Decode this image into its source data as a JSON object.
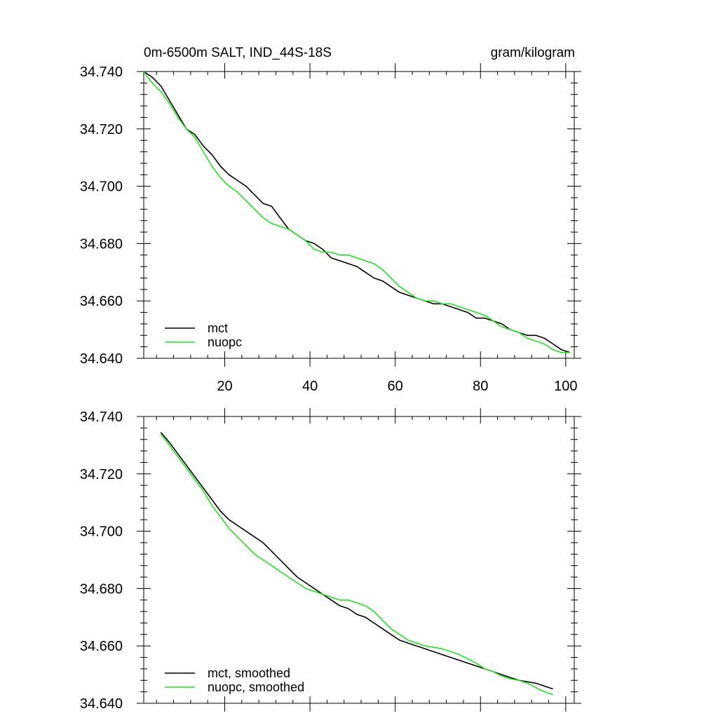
{
  "header": {
    "title": "0m-6500m SALT, IND_44S-18S",
    "units": "gram/kilogram"
  },
  "colors": {
    "mct": "#000000",
    "nuopc": "#22e022",
    "axis": "#000000"
  },
  "chart_data": [
    {
      "type": "line",
      "panel": "top",
      "title": "0m-6500m SALT, IND_44S-18S",
      "units": "gram/kilogram",
      "xlabel": "",
      "ylabel": "",
      "xlim": [
        1,
        102
      ],
      "ylim": [
        34.64,
        34.74
      ],
      "xticks": [
        20,
        40,
        60,
        80,
        100
      ],
      "xtick_labels": [
        "20",
        "40",
        "60",
        "80",
        "100"
      ],
      "yticks": [
        34.64,
        34.66,
        34.68,
        34.7,
        34.72,
        34.74
      ],
      "ytick_labels": [
        "34.640",
        "34.660",
        "34.680",
        "34.700",
        "34.720",
        "34.740"
      ],
      "show_xtick_labels": true,
      "grid": false,
      "legend": "bottom-left",
      "series": [
        {
          "name": "mct",
          "color": "#000000",
          "x": [
            1,
            3,
            5,
            7,
            9,
            11,
            13,
            15,
            17,
            19,
            21,
            23,
            25,
            27,
            29,
            31,
            33,
            35,
            37,
            39,
            41,
            43,
            45,
            47,
            49,
            51,
            53,
            55,
            57,
            59,
            61,
            63,
            65,
            67,
            69,
            71,
            73,
            75,
            77,
            79,
            81,
            83,
            85,
            87,
            89,
            91,
            93,
            95,
            97,
            99,
            101
          ],
          "y": [
            34.74,
            34.738,
            34.735,
            34.73,
            34.725,
            34.72,
            34.718,
            34.714,
            34.711,
            34.707,
            34.704,
            34.702,
            34.7,
            34.697,
            34.694,
            34.693,
            34.689,
            34.685,
            34.683,
            34.681,
            34.68,
            34.678,
            34.675,
            34.674,
            34.673,
            34.672,
            34.67,
            34.668,
            34.667,
            34.665,
            34.663,
            34.662,
            34.661,
            34.66,
            34.659,
            34.659,
            34.658,
            34.657,
            34.656,
            34.654,
            34.654,
            34.653,
            34.652,
            34.65,
            34.649,
            34.648,
            34.648,
            34.647,
            34.645,
            34.643,
            34.642
          ]
        },
        {
          "name": "nuopc",
          "color": "#22e022",
          "x": [
            1,
            3,
            5,
            7,
            9,
            11,
            13,
            15,
            17,
            19,
            21,
            23,
            25,
            27,
            29,
            31,
            33,
            35,
            37,
            39,
            41,
            43,
            45,
            47,
            49,
            51,
            53,
            55,
            57,
            59,
            61,
            63,
            65,
            67,
            69,
            71,
            73,
            75,
            77,
            79,
            81,
            83,
            85,
            87,
            89,
            91,
            93,
            95,
            97,
            99,
            101
          ],
          "y": [
            34.74,
            34.736,
            34.733,
            34.729,
            34.724,
            34.72,
            34.717,
            34.712,
            34.707,
            34.703,
            34.7,
            34.698,
            34.695,
            34.692,
            34.689,
            34.687,
            34.686,
            34.685,
            34.683,
            34.681,
            34.678,
            34.677,
            34.677,
            34.676,
            34.676,
            34.675,
            34.674,
            34.673,
            34.671,
            34.668,
            34.665,
            34.663,
            34.661,
            34.66,
            34.66,
            34.659,
            34.659,
            34.658,
            34.657,
            34.656,
            34.655,
            34.653,
            34.651,
            34.65,
            34.649,
            34.647,
            34.646,
            34.645,
            34.643,
            34.642,
            34.642
          ]
        }
      ]
    },
    {
      "type": "line",
      "panel": "bottom",
      "xlabel": "",
      "ylabel": "",
      "xlim": [
        1,
        102
      ],
      "ylim": [
        34.64,
        34.74
      ],
      "xticks": [
        20,
        40,
        60,
        80,
        100
      ],
      "xtick_labels": [
        "20",
        "40",
        "60",
        "80",
        "100"
      ],
      "yticks": [
        34.64,
        34.66,
        34.68,
        34.7,
        34.72,
        34.74
      ],
      "ytick_labels": [
        "34.640",
        "34.660",
        "34.680",
        "34.700",
        "34.720",
        "34.740"
      ],
      "show_xtick_labels": false,
      "grid": false,
      "legend": "bottom-left",
      "series": [
        {
          "name": "mct, smoothed",
          "color": "#000000",
          "x": [
            5,
            7,
            9,
            11,
            13,
            15,
            17,
            19,
            21,
            23,
            25,
            27,
            29,
            31,
            33,
            35,
            37,
            39,
            41,
            43,
            45,
            47,
            49,
            51,
            53,
            55,
            57,
            59,
            61,
            63,
            65,
            67,
            69,
            71,
            73,
            75,
            77,
            79,
            81,
            83,
            85,
            87,
            89,
            91,
            93,
            95,
            97
          ],
          "y": [
            34.7345,
            34.731,
            34.727,
            34.723,
            34.719,
            34.715,
            34.711,
            34.707,
            34.704,
            34.702,
            34.7,
            34.698,
            34.696,
            34.693,
            34.69,
            34.687,
            34.684,
            34.682,
            34.68,
            34.678,
            34.676,
            34.674,
            34.673,
            34.671,
            34.67,
            34.668,
            34.666,
            34.664,
            34.662,
            34.661,
            34.66,
            34.659,
            34.658,
            34.657,
            34.656,
            34.655,
            34.654,
            34.653,
            34.652,
            34.651,
            34.65,
            34.649,
            34.648,
            34.6475,
            34.647,
            34.646,
            34.645
          ]
        },
        {
          "name": "nuopc, smoothed",
          "color": "#22e022",
          "x": [
            5,
            7,
            9,
            11,
            13,
            15,
            17,
            19,
            21,
            23,
            25,
            27,
            29,
            31,
            33,
            35,
            37,
            39,
            41,
            43,
            45,
            47,
            49,
            51,
            53,
            55,
            57,
            59,
            61,
            63,
            65,
            67,
            69,
            71,
            73,
            75,
            77,
            79,
            81,
            83,
            85,
            87,
            89,
            91,
            93,
            95,
            97
          ],
          "y": [
            34.734,
            34.73,
            34.726,
            34.722,
            34.718,
            34.714,
            34.709,
            34.705,
            34.701,
            34.698,
            34.695,
            34.692,
            34.69,
            34.688,
            34.686,
            34.684,
            34.682,
            34.68,
            34.679,
            34.678,
            34.677,
            34.676,
            34.676,
            34.675,
            34.674,
            34.672,
            34.669,
            34.666,
            34.664,
            34.662,
            34.661,
            34.66,
            34.6595,
            34.659,
            34.658,
            34.657,
            34.6555,
            34.654,
            34.652,
            34.651,
            34.6495,
            34.6485,
            34.648,
            34.647,
            34.6455,
            34.644,
            34.643
          ]
        }
      ]
    }
  ]
}
